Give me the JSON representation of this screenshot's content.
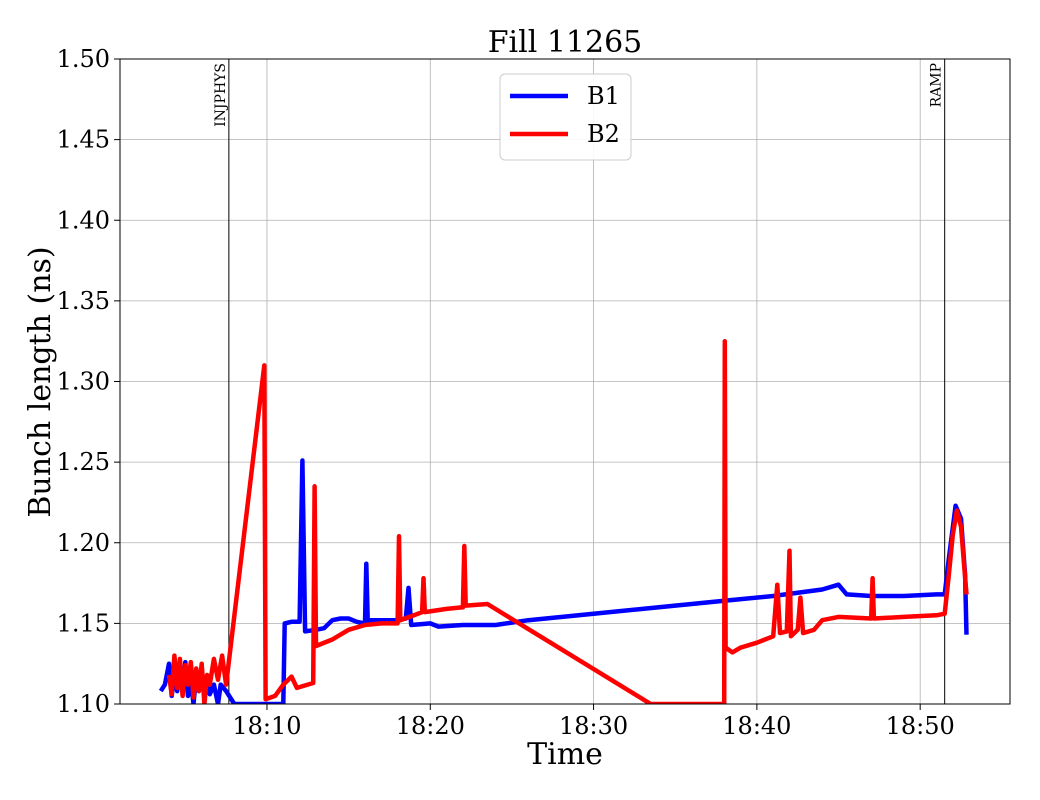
{
  "chart_data": {
    "type": "line",
    "title": "Fill 11265",
    "xlabel": "Time",
    "ylabel": "Bunch length (ns)",
    "xlim": [
      "18:01:00",
      "18:55:30"
    ],
    "ylim": [
      1.1,
      1.5
    ],
    "x_ticks": [
      "18:10",
      "18:20",
      "18:30",
      "18:40",
      "18:50"
    ],
    "y_ticks": [
      "1.10",
      "1.15",
      "1.20",
      "1.25",
      "1.30",
      "1.35",
      "1.40",
      "1.45",
      "1.50"
    ],
    "grid": true,
    "legend_position": "top-center",
    "events": [
      {
        "label": "INJPHYS",
        "time": "18:07:40"
      },
      {
        "label": "RAMP",
        "time": "18:51:30"
      }
    ],
    "series": [
      {
        "name": "B1",
        "color": "#0000ff",
        "points": [
          [
            "18:03:30",
            1.108
          ],
          [
            "18:03:45",
            1.112
          ],
          [
            "18:04:00",
            1.125
          ],
          [
            "18:04:10",
            1.105
          ],
          [
            "18:04:20",
            1.118
          ],
          [
            "18:04:30",
            1.108
          ],
          [
            "18:04:40",
            1.122
          ],
          [
            "18:04:50",
            1.11
          ],
          [
            "18:05:00",
            1.126
          ],
          [
            "18:05:10",
            1.105
          ],
          [
            "18:05:20",
            1.115
          ],
          [
            "18:05:30",
            1.1
          ],
          [
            "18:05:40",
            1.118
          ],
          [
            "18:05:50",
            1.108
          ],
          [
            "18:06:00",
            1.12
          ],
          [
            "18:06:10",
            1.104
          ],
          [
            "18:06:20",
            1.114
          ],
          [
            "18:06:30",
            1.106
          ],
          [
            "18:06:45",
            1.112
          ],
          [
            "18:07:00",
            1.1
          ],
          [
            "18:07:10",
            1.112
          ],
          [
            "18:07:30",
            1.108
          ],
          [
            "18:08:00",
            1.1
          ],
          [
            "18:11:00",
            1.1
          ],
          [
            "18:11:05",
            1.15
          ],
          [
            "18:11:30",
            1.151
          ],
          [
            "18:12:00",
            1.151
          ],
          [
            "18:12:10",
            1.251
          ],
          [
            "18:12:20",
            1.145
          ],
          [
            "18:13:00",
            1.146
          ],
          [
            "18:13:30",
            1.147
          ],
          [
            "18:14:00",
            1.152
          ],
          [
            "18:14:30",
            1.153
          ],
          [
            "18:15:00",
            1.153
          ],
          [
            "18:15:30",
            1.151
          ],
          [
            "18:16:00",
            1.15
          ],
          [
            "18:16:05",
            1.187
          ],
          [
            "18:16:10",
            1.152
          ],
          [
            "18:17:00",
            1.152
          ],
          [
            "18:18:00",
            1.152
          ],
          [
            "18:18:30",
            1.153
          ],
          [
            "18:18:40",
            1.172
          ],
          [
            "18:18:50",
            1.149
          ],
          [
            "18:20:00",
            1.15
          ],
          [
            "18:20:30",
            1.148
          ],
          [
            "18:22:00",
            1.149
          ],
          [
            "18:24:00",
            1.149
          ],
          [
            "18:26:00",
            1.152
          ],
          [
            "18:30:00",
            1.156
          ],
          [
            "18:34:00",
            1.16
          ],
          [
            "18:38:00",
            1.164
          ],
          [
            "18:41:00",
            1.167
          ],
          [
            "18:44:00",
            1.171
          ],
          [
            "18:45:00",
            1.174
          ],
          [
            "18:45:30",
            1.168
          ],
          [
            "18:47:00",
            1.167
          ],
          [
            "18:49:00",
            1.167
          ],
          [
            "18:51:00",
            1.168
          ],
          [
            "18:51:30",
            1.168
          ],
          [
            "18:51:45",
            1.19
          ],
          [
            "18:52:10",
            1.223
          ],
          [
            "18:52:30",
            1.215
          ],
          [
            "18:52:45",
            1.18
          ],
          [
            "18:52:50",
            1.143
          ]
        ]
      },
      {
        "name": "B2",
        "color": "#ff0000",
        "points": [
          [
            "18:04:00",
            1.118
          ],
          [
            "18:04:10",
            1.106
          ],
          [
            "18:04:20",
            1.13
          ],
          [
            "18:04:30",
            1.11
          ],
          [
            "18:04:40",
            1.128
          ],
          [
            "18:04:50",
            1.105
          ],
          [
            "18:05:00",
            1.124
          ],
          [
            "18:05:10",
            1.112
          ],
          [
            "18:05:20",
            1.126
          ],
          [
            "18:05:30",
            1.104
          ],
          [
            "18:05:40",
            1.122
          ],
          [
            "18:05:50",
            1.108
          ],
          [
            "18:06:00",
            1.125
          ],
          [
            "18:06:10",
            1.1
          ],
          [
            "18:06:20",
            1.118
          ],
          [
            "18:06:30",
            1.112
          ],
          [
            "18:06:45",
            1.128
          ],
          [
            "18:07:00",
            1.115
          ],
          [
            "18:07:15",
            1.13
          ],
          [
            "18:07:30",
            1.112
          ],
          [
            "18:09:50",
            1.31
          ],
          [
            "18:09:55",
            1.103
          ],
          [
            "18:10:30",
            1.105
          ],
          [
            "18:11:00",
            1.112
          ],
          [
            "18:11:30",
            1.117
          ],
          [
            "18:11:50",
            1.11
          ],
          [
            "18:12:50",
            1.113
          ],
          [
            "18:12:55",
            1.235
          ],
          [
            "18:13:00",
            1.136
          ],
          [
            "18:14:00",
            1.14
          ],
          [
            "18:15:00",
            1.146
          ],
          [
            "18:16:00",
            1.149
          ],
          [
            "18:17:00",
            1.15
          ],
          [
            "18:18:00",
            1.15
          ],
          [
            "18:18:05",
            1.204
          ],
          [
            "18:18:10",
            1.152
          ],
          [
            "18:19:00",
            1.155
          ],
          [
            "18:19:30",
            1.157
          ],
          [
            "18:19:35",
            1.178
          ],
          [
            "18:19:40",
            1.157
          ],
          [
            "18:21:00",
            1.159
          ],
          [
            "18:22:00",
            1.16
          ],
          [
            "18:22:05",
            1.198
          ],
          [
            "18:22:10",
            1.161
          ],
          [
            "18:23:30",
            1.162
          ],
          [
            "18:33:30",
            1.1
          ],
          [
            "18:38:00",
            1.1
          ],
          [
            "18:38:02",
            1.325
          ],
          [
            "18:38:05",
            1.135
          ],
          [
            "18:38:30",
            1.132
          ],
          [
            "18:39:00",
            1.135
          ],
          [
            "18:40:00",
            1.138
          ],
          [
            "18:41:00",
            1.142
          ],
          [
            "18:41:15",
            1.174
          ],
          [
            "18:41:25",
            1.144
          ],
          [
            "18:41:50",
            1.145
          ],
          [
            "18:42:00",
            1.195
          ],
          [
            "18:42:05",
            1.142
          ],
          [
            "18:42:30",
            1.146
          ],
          [
            "18:42:40",
            1.166
          ],
          [
            "18:42:50",
            1.144
          ],
          [
            "18:43:30",
            1.146
          ],
          [
            "18:44:00",
            1.152
          ],
          [
            "18:45:00",
            1.154
          ],
          [
            "18:47:00",
            1.153
          ],
          [
            "18:47:05",
            1.178
          ],
          [
            "18:47:10",
            1.153
          ],
          [
            "18:49:00",
            1.154
          ],
          [
            "18:51:00",
            1.155
          ],
          [
            "18:51:30",
            1.156
          ],
          [
            "18:51:45",
            1.18
          ],
          [
            "18:52:00",
            1.205
          ],
          [
            "18:52:15",
            1.22
          ],
          [
            "18:52:30",
            1.21
          ],
          [
            "18:52:50",
            1.168
          ]
        ]
      }
    ]
  }
}
